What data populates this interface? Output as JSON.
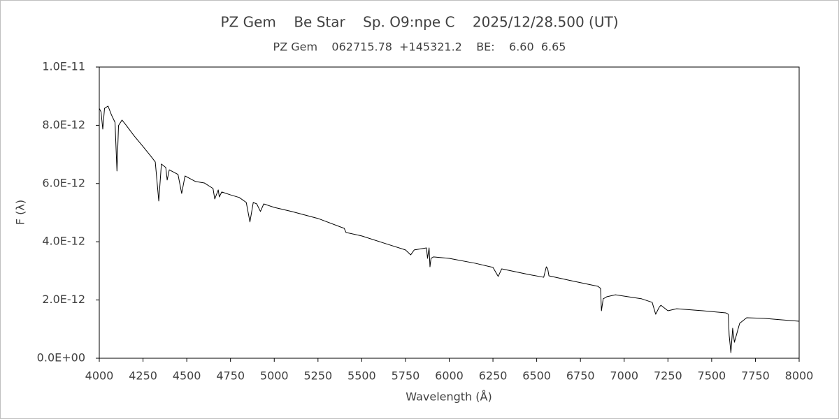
{
  "chart_data": {
    "type": "line",
    "title": "PZ Gem    Be Star    Sp. O9:npe C    2025/12/28.500 (UT)",
    "subtitle": "PZ Gem    062715.78  +145321.2    BE:    6.60  6.65",
    "x_label": "Wavelength (Å)",
    "y_label": "F (λ)",
    "xlim": [
      4000,
      8000
    ],
    "xticks": [
      4000,
      4250,
      4500,
      4750,
      5000,
      5250,
      5500,
      5750,
      6000,
      6250,
      6500,
      6750,
      7000,
      7250,
      7500,
      7750,
      8000
    ],
    "ylim": [
      0,
      1e-11
    ],
    "yticks": [
      {
        "value": 0,
        "label": "0.0E+00"
      },
      {
        "value": 2e-12,
        "label": "2.0E-12"
      },
      {
        "value": 4e-12,
        "label": "4.0E-12"
      },
      {
        "value": 6e-12,
        "label": "6.0E-12"
      },
      {
        "value": 8e-12,
        "label": "8.0E-12"
      },
      {
        "value": 1e-11,
        "label": "1.0E-11"
      }
    ],
    "grid": false,
    "series": [
      {
        "color": "#000000",
        "x": [
          4000,
          4010,
          4020,
          4030,
          4050,
          4070,
          4090,
          4101,
          4110,
          4130,
          4150,
          4200,
          4250,
          4300,
          4320,
          4340,
          4355,
          4380,
          4388,
          4400,
          4450,
          4471,
          4490,
          4550,
          4600,
          4650,
          4660,
          4680,
          4686,
          4700,
          4750,
          4800,
          4840,
          4861,
          4880,
          4900,
          4921,
          4940,
          5000,
          5100,
          5250,
          5400,
          5410,
          5500,
          5650,
          5750,
          5780,
          5800,
          5870,
          5876,
          5885,
          5890,
          5896,
          5910,
          6000,
          6150,
          6250,
          6280,
          6300,
          6450,
          6540,
          6555,
          6563,
          6570,
          6700,
          6850,
          6865,
          6870,
          6880,
          6900,
          6950,
          7100,
          7160,
          7180,
          7200,
          7210,
          7250,
          7300,
          7450,
          7580,
          7595,
          7600,
          7610,
          7620,
          7630,
          7660,
          7700,
          7800,
          7900,
          8000
        ],
        "values": [
          8.58e-12,
          8.46e-12,
          7.87e-12,
          8.58e-12,
          8.66e-12,
          8.35e-12,
          8.1e-12,
          6.43e-12,
          7.99e-12,
          8.18e-12,
          8.03e-12,
          7.63e-12,
          7.27e-12,
          6.9e-12,
          6.74e-12,
          5.4e-12,
          6.67e-12,
          6.55e-12,
          6.12e-12,
          6.47e-12,
          6.31e-12,
          5.66e-12,
          6.26e-12,
          6.07e-12,
          6.02e-12,
          5.83e-12,
          5.47e-12,
          5.78e-12,
          5.54e-12,
          5.71e-12,
          5.61e-12,
          5.52e-12,
          5.35e-12,
          4.68e-12,
          5.35e-12,
          5.3e-12,
          5.04e-12,
          5.3e-12,
          5.18e-12,
          5.04e-12,
          4.8e-12,
          4.46e-12,
          4.32e-12,
          4.2e-12,
          3.91e-12,
          3.72e-12,
          3.55e-12,
          3.72e-12,
          3.79e-12,
          3.43e-12,
          3.79e-12,
          3.14e-12,
          3.43e-12,
          3.48e-12,
          3.43e-12,
          3.26e-12,
          3.12e-12,
          2.81e-12,
          3.07e-12,
          2.88e-12,
          2.78e-12,
          3.14e-12,
          3.07e-12,
          2.83e-12,
          2.66e-12,
          2.47e-12,
          2.4e-12,
          1.63e-12,
          2.04e-12,
          2.11e-12,
          2.18e-12,
          2.04e-12,
          1.92e-12,
          1.51e-12,
          1.75e-12,
          1.82e-12,
          1.63e-12,
          1.7e-12,
          1.63e-12,
          1.56e-12,
          1.51e-12,
          7.9e-13,
          1.9e-13,
          1.03e-12,
          5.5e-13,
          1.2e-12,
          1.39e-12,
          1.37e-12,
          1.32e-12,
          1.27e-12
        ]
      }
    ]
  }
}
